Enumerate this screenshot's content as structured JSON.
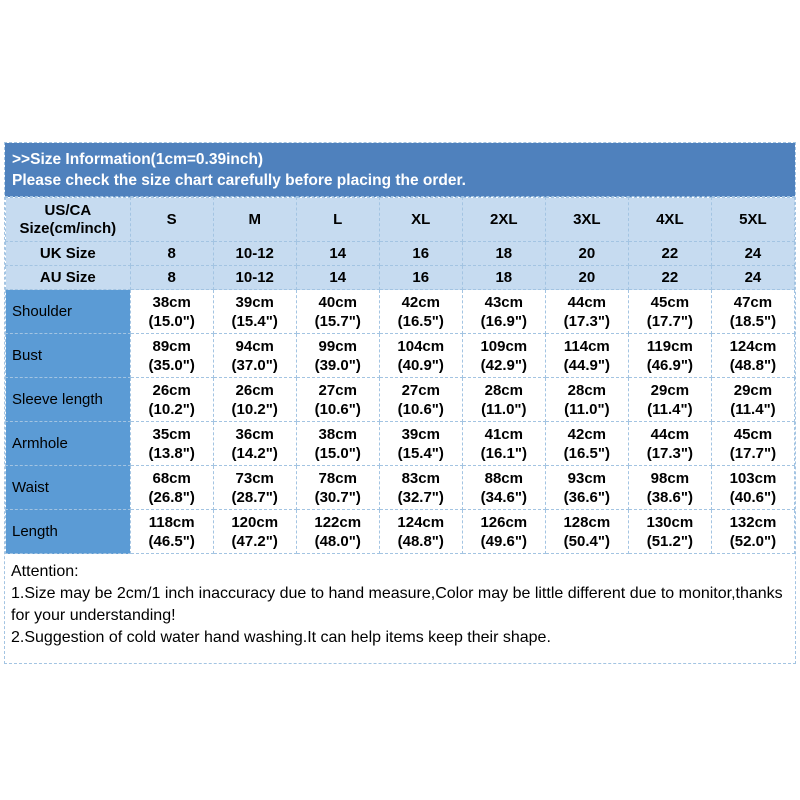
{
  "header": {
    "title": ">>Size Information(1cm=0.39inch)",
    "subtitle": "Please check the size chart carefully before placing the order."
  },
  "size_table": {
    "corner_label": "US/CA\nSize(cm/inch)",
    "sizes": [
      "S",
      "M",
      "L",
      "XL",
      "2XL",
      "3XL",
      "4XL",
      "5XL"
    ],
    "conversion_rows": [
      {
        "label": "UK Size",
        "values": [
          "8",
          "10-12",
          "14",
          "16",
          "18",
          "20",
          "22",
          "24"
        ]
      },
      {
        "label": "AU Size",
        "values": [
          "8",
          "10-12",
          "14",
          "16",
          "18",
          "20",
          "22",
          "24"
        ]
      }
    ],
    "measurement_rows": [
      {
        "label": "Shoulder",
        "values": [
          "38cm\n(15.0\")",
          "39cm\n(15.4\")",
          "40cm\n(15.7\")",
          "42cm\n(16.5\")",
          "43cm\n(16.9\")",
          "44cm\n(17.3\")",
          "45cm\n(17.7\")",
          "47cm\n(18.5\")"
        ]
      },
      {
        "label": "Bust",
        "values": [
          "89cm\n(35.0\")",
          "94cm\n(37.0\")",
          "99cm\n(39.0\")",
          "104cm\n(40.9\")",
          "109cm\n(42.9\")",
          "114cm\n(44.9\")",
          "119cm\n(46.9\")",
          "124cm\n(48.8\")"
        ]
      },
      {
        "label": "Sleeve length",
        "values": [
          "26cm\n(10.2\")",
          "26cm\n(10.2\")",
          "27cm\n(10.6\")",
          "27cm\n(10.6\")",
          "28cm\n(11.0\")",
          "28cm\n(11.0\")",
          "29cm\n(11.4\")",
          "29cm\n(11.4\")"
        ]
      },
      {
        "label": "Armhole",
        "values": [
          "35cm\n(13.8\")",
          "36cm\n(14.2\")",
          "38cm\n(15.0\")",
          "39cm\n(15.4\")",
          "41cm\n(16.1\")",
          "42cm\n(16.5\")",
          "44cm\n(17.3\")",
          "45cm\n(17.7\")"
        ]
      },
      {
        "label": "Waist",
        "values": [
          "68cm\n(26.8\")",
          "73cm\n(28.7\")",
          "78cm\n(30.7\")",
          "83cm\n(32.7\")",
          "88cm\n(34.6\")",
          "93cm\n(36.6\")",
          "98cm\n(38.6\")",
          "103cm\n(40.6\")"
        ]
      },
      {
        "label": "Length",
        "values": [
          "118cm\n(46.5\")",
          "120cm\n(47.2\")",
          "122cm\n(48.0\")",
          "124cm\n(48.8\")",
          "126cm\n(49.6\")",
          "128cm\n(50.4\")",
          "130cm\n(51.2\")",
          "132cm\n(52.0\")"
        ]
      }
    ]
  },
  "attention": {
    "title": "Attention:",
    "lines": [
      "1.Size may be 2cm/1 inch inaccuracy due to hand measure,Color may be little different due to monitor,thanks for your understanding!",
      "2.Suggestion of cold water hand washing.It can help items keep their shape."
    ]
  },
  "colors": {
    "header_band_bg": "#4f81bd",
    "header_band_text": "#ffffff",
    "light_blue_cell": "#c6dbf0",
    "row_label_blue": "#5b9bd5",
    "grid_line": "#a3c4e2",
    "body_text": "#000000"
  }
}
